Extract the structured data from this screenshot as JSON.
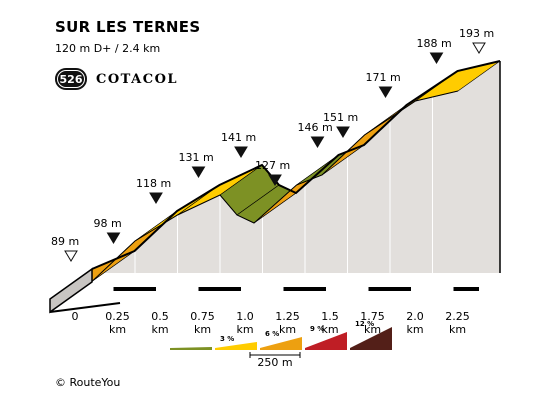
{
  "header": {
    "title": "SUR LES TERNES",
    "subtitle": "120 m D+ / 2.4 km"
  },
  "badge": {
    "number": "526",
    "name": "COTACOL"
  },
  "credit": "© RouteYou",
  "colors": {
    "grade_0_3": "#7d9124",
    "grade_3_6": "#ffcc00",
    "grade_6_9": "#eda010",
    "grade_9_12": "#bf1e25",
    "grade_12_plus": "#531f18",
    "side": "#e2dfdc",
    "outline": "#000000"
  },
  "chart_data": {
    "type": "area",
    "title": "SUR LES TERNES",
    "x_unit": "km",
    "y_unit": "m",
    "profile": [
      {
        "km": 0.0,
        "elev": 89,
        "label": "89 m",
        "marker": "start"
      },
      {
        "km": 0.25,
        "elev": 98,
        "label": "98 m",
        "marker": "filled"
      },
      {
        "km": 0.5,
        "elev": 118,
        "label": "118 m",
        "marker": "filled"
      },
      {
        "km": 0.75,
        "elev": 131,
        "label": "131 m",
        "marker": "filled"
      },
      {
        "km": 1.0,
        "elev": 141,
        "label": "141 m",
        "marker": "filled"
      },
      {
        "km": 1.1,
        "elev": 131,
        "label": "",
        "marker": ""
      },
      {
        "km": 1.2,
        "elev": 127,
        "label": "127 m",
        "marker": "filled"
      },
      {
        "km": 1.45,
        "elev": 146,
        "label": "146 m",
        "marker": "filled"
      },
      {
        "km": 1.6,
        "elev": 151,
        "label": "151 m",
        "marker": "filled"
      },
      {
        "km": 1.85,
        "elev": 171,
        "label": "171 m",
        "marker": "filled"
      },
      {
        "km": 2.15,
        "elev": 188,
        "label": "188 m",
        "marker": "filled"
      },
      {
        "km": 2.4,
        "elev": 193,
        "label": "193 m",
        "marker": "end"
      }
    ],
    "segment_grades": [
      "6-9",
      "6-9",
      "3-6",
      "3-6",
      "0-3",
      "0-3",
      "6-9",
      "0-3",
      "6-9",
      "6-9",
      "3-6"
    ],
    "x_ticks": [
      {
        "km": 0.0,
        "label": "0"
      },
      {
        "km": 0.25,
        "label": "0.25 km"
      },
      {
        "km": 0.5,
        "label": "0.5 km"
      },
      {
        "km": 0.75,
        "label": "0.75 km"
      },
      {
        "km": 1.0,
        "label": "1.0 km"
      },
      {
        "km": 1.25,
        "label": "1.25 km"
      },
      {
        "km": 1.5,
        "label": "1.5 km"
      },
      {
        "km": 1.75,
        "label": "1.75 km"
      },
      {
        "km": 2.0,
        "label": "2.0 km"
      },
      {
        "km": 2.25,
        "label": "2.25 km"
      }
    ],
    "legend": {
      "items": [
        {
          "label": "",
          "grade": "0-3"
        },
        {
          "label": "3 %",
          "grade": "3-6"
        },
        {
          "label": "6 %",
          "grade": "6-9"
        },
        {
          "label": "9 %",
          "grade": "9-12"
        },
        {
          "label": "12 %",
          "grade": "12+"
        }
      ],
      "scale_label": "250 m"
    }
  }
}
